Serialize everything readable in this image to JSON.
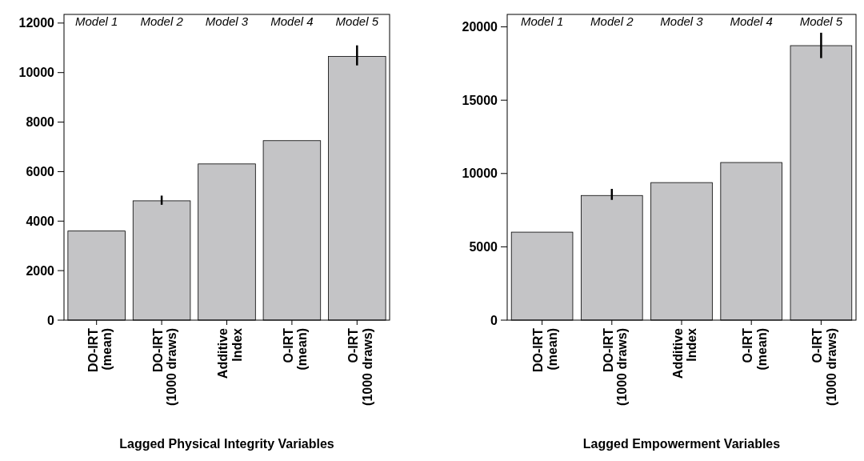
{
  "chart_data": [
    {
      "type": "bar",
      "xlabel": "Lagged Physical Integrity Variables",
      "categories": [
        "DO-IRT\n(mean)",
        "DO-IRT\n(1000 draws)",
        "Additive\nIndex",
        "O-IRT\n(mean)",
        "O-IRT\n(1000 draws)"
      ],
      "values": [
        3600,
        4820,
        6310,
        7250,
        10650
      ],
      "color": "#c4c4c6",
      "errors": [
        null,
        [
          4660,
          5030
        ],
        null,
        null,
        [
          10290,
          11100
        ]
      ],
      "ylim": [
        0,
        12350
      ],
      "yticks": [
        0,
        2000,
        4000,
        6000,
        8000,
        10000,
        12000
      ],
      "grid": false,
      "annotations": [
        "Model 1",
        "Model 2",
        "Model 3",
        "Model 4",
        "Model 5"
      ]
    },
    {
      "type": "bar",
      "xlabel": "Lagged Empowerment Variables",
      "categories": [
        "DO-IRT\n(mean)",
        "DO-IRT\n(1000 draws)",
        "Additive\nIndex",
        "O-IRT\n(mean)",
        "O-IRT\n(1000 draws)"
      ],
      "values": [
        6000,
        8500,
        9380,
        10750,
        18720
      ],
      "color": "#c4c4c6",
      "errors": [
        null,
        [
          8200,
          8950
        ],
        null,
        null,
        [
          17870,
          19600
        ]
      ],
      "ylim": [
        0,
        20850
      ],
      "yticks": [
        0,
        5000,
        10000,
        15000,
        20000
      ],
      "grid": false,
      "annotations": [
        "Model 1",
        "Model 2",
        "Model 3",
        "Model 4",
        "Model 5"
      ]
    }
  ]
}
